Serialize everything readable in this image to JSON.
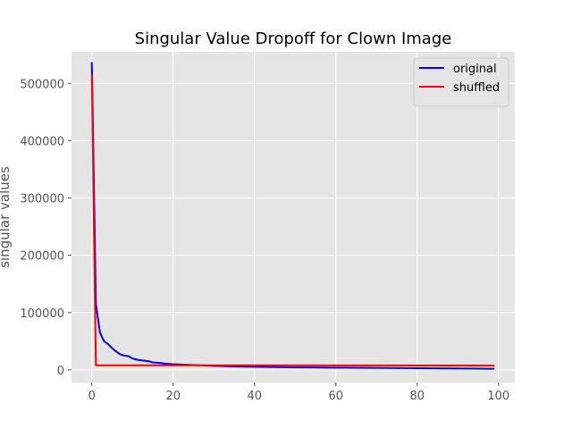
{
  "chart_data": {
    "type": "line",
    "title": "Singular Value Dropoff for Clown Image",
    "xlabel": "",
    "ylabel": "singular values",
    "xlim": [
      -5,
      104
    ],
    "ylim": [
      -22000,
      555000
    ],
    "x_ticks": [
      0,
      20,
      40,
      60,
      80,
      100
    ],
    "x_tick_labels": [
      "0",
      "20",
      "40",
      "60",
      "80",
      "100"
    ],
    "y_ticks": [
      0,
      100000,
      200000,
      300000,
      400000,
      500000
    ],
    "y_tick_labels": [
      "0",
      "100000",
      "200000",
      "300000",
      "400000",
      "500000"
    ],
    "grid": true,
    "legend_position": "top-right",
    "series": [
      {
        "name": "original",
        "color": "#0000ff",
        "x": [
          0,
          1,
          2,
          3,
          4,
          5,
          6,
          7,
          8,
          9,
          10,
          11,
          12,
          13,
          14,
          15,
          16,
          17,
          18,
          20,
          25,
          30,
          40,
          50,
          60,
          70,
          80,
          90,
          99
        ],
        "y": [
          537000,
          115000,
          65000,
          50000,
          45000,
          38000,
          32000,
          27000,
          25000,
          24000,
          20000,
          18000,
          17000,
          16000,
          15000,
          13000,
          12500,
          12000,
          11000,
          10000,
          8500,
          7000,
          5500,
          4500,
          4000,
          3500,
          3000,
          2500,
          2000
        ]
      },
      {
        "name": "shuffled",
        "color": "#ff0000",
        "x": [
          0,
          1,
          2,
          10,
          20,
          30,
          40,
          50,
          60,
          70,
          80,
          90,
          99
        ],
        "y": [
          515000,
          8000,
          8000,
          8000,
          8000,
          8000,
          8000,
          8000,
          7900,
          7800,
          7700,
          7600,
          7500
        ]
      }
    ]
  }
}
